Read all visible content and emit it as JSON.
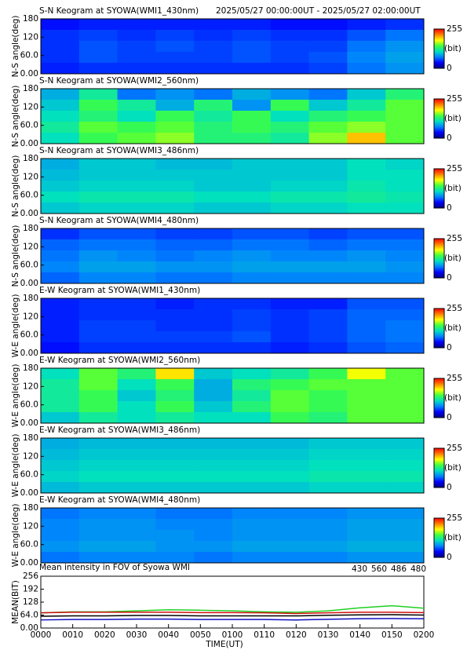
{
  "colorscale": [
    "#00007f",
    "#0000ff",
    "#0080ff",
    "#00e0c0",
    "#40ff40",
    "#ffff00",
    "#ff8000",
    "#ff0000"
  ],
  "chart_data": [
    {
      "type": "heatmap",
      "title": "S-N Keogram at SYOWA(WMI1_430nm)",
      "subtitle": "2025/05/27 00:00:00UT - 2025/05/27 02:00:00UT",
      "ylabel": "N-S angle(deg)",
      "ylim": [
        0,
        180
      ],
      "yticks": [
        {
          "value": 0,
          "label": "0.00"
        },
        {
          "value": 60,
          "label": "60.0"
        },
        120,
        180
      ],
      "clim": [
        0,
        255
      ],
      "cticks": [
        0,
        255
      ],
      "clabel": "(bit)",
      "values": [
        [
          40,
          45,
          45,
          45,
          45,
          45,
          40,
          40,
          45,
          50
        ],
        [
          50,
          55,
          50,
          55,
          50,
          55,
          50,
          50,
          60,
          70
        ],
        [
          50,
          60,
          55,
          60,
          55,
          60,
          55,
          55,
          70,
          80
        ],
        [
          50,
          60,
          55,
          55,
          55,
          60,
          55,
          60,
          75,
          85
        ],
        [
          45,
          50,
          50,
          50,
          50,
          50,
          50,
          55,
          70,
          80
        ]
      ]
    },
    {
      "type": "heatmap",
      "title": "S-N Keogram at SYOWA(WMI2_560nm)",
      "ylabel": "N-S angle(deg)",
      "ylim": [
        0,
        180
      ],
      "yticks": [
        {
          "value": 0,
          "label": "0.00"
        },
        {
          "value": 60,
          "label": "60.0"
        },
        120,
        180
      ],
      "clim": [
        0,
        255
      ],
      "cticks": [
        0,
        255
      ],
      "clabel": "(bit)",
      "values": [
        [
          90,
          120,
          70,
          80,
          70,
          90,
          80,
          70,
          100,
          130
        ],
        [
          100,
          140,
          120,
          90,
          130,
          80,
          140,
          100,
          120,
          150
        ],
        [
          110,
          130,
          110,
          140,
          120,
          140,
          110,
          130,
          140,
          150
        ],
        [
          120,
          150,
          140,
          150,
          130,
          140,
          130,
          150,
          160,
          150
        ],
        [
          110,
          140,
          150,
          160,
          130,
          130,
          120,
          160,
          200,
          150
        ]
      ]
    },
    {
      "type": "heatmap",
      "title": "S-N Keogram at SYOWA(WMI3_486nm)",
      "ylabel": "N-S angle(deg)",
      "ylim": [
        0,
        180
      ],
      "yticks": [
        {
          "value": 0,
          "label": "0.00"
        },
        {
          "value": 60,
          "label": "60.0"
        },
        120,
        180
      ],
      "clim": [
        0,
        255
      ],
      "cticks": [
        0,
        255
      ],
      "clabel": "(bit)",
      "values": [
        [
          90,
          100,
          100,
          95,
          95,
          100,
          100,
          100,
          110,
          105
        ],
        [
          95,
          100,
          100,
          100,
          100,
          100,
          100,
          100,
          110,
          110
        ],
        [
          100,
          105,
          105,
          105,
          100,
          100,
          105,
          105,
          115,
          110
        ],
        [
          110,
          115,
          115,
          115,
          110,
          110,
          115,
          115,
          120,
          115
        ],
        [
          100,
          105,
          105,
          105,
          100,
          100,
          105,
          105,
          110,
          110
        ]
      ]
    },
    {
      "type": "heatmap",
      "title": "S-N Keogram at SYOWA(WMI4_480nm)",
      "ylabel": "N-S angle(deg)",
      "ylim": [
        0,
        180
      ],
      "yticks": [
        {
          "value": 0,
          "label": "0.00"
        },
        {
          "value": 60,
          "label": "60.0"
        },
        120,
        180
      ],
      "clim": [
        0,
        255
      ],
      "cticks": [
        0,
        255
      ],
      "clabel": "(bit)",
      "values": [
        [
          50,
          60,
          60,
          55,
          55,
          60,
          60,
          55,
          60,
          60
        ],
        [
          65,
          70,
          70,
          65,
          65,
          70,
          70,
          65,
          70,
          70
        ],
        [
          70,
          80,
          75,
          70,
          75,
          80,
          75,
          75,
          80,
          75
        ],
        [
          75,
          85,
          85,
          80,
          80,
          85,
          85,
          85,
          85,
          80
        ],
        [
          65,
          75,
          75,
          70,
          70,
          75,
          75,
          75,
          75,
          75
        ]
      ]
    },
    {
      "type": "heatmap",
      "title": "E-W Keogram at SYOWA(WMI1_430nm)",
      "ylabel": "W-E angle(deg)",
      "ylim": [
        0,
        180
      ],
      "yticks": [
        {
          "value": 0,
          "label": "0.00"
        },
        {
          "value": 60,
          "label": "60.0"
        },
        120,
        180
      ],
      "clim": [
        0,
        255
      ],
      "cticks": [
        0,
        255
      ],
      "clabel": "(bit)",
      "values": [
        [
          45,
          50,
          50,
          45,
          50,
          50,
          45,
          45,
          60,
          60
        ],
        [
          45,
          50,
          50,
          50,
          50,
          55,
          50,
          55,
          65,
          65
        ],
        [
          45,
          55,
          55,
          50,
          50,
          55,
          50,
          55,
          65,
          70
        ],
        [
          45,
          55,
          55,
          55,
          55,
          60,
          50,
          55,
          65,
          70
        ],
        [
          40,
          50,
          50,
          50,
          50,
          50,
          45,
          50,
          60,
          65
        ]
      ]
    },
    {
      "type": "heatmap",
      "title": "E-W Keogram at SYOWA(WMI2_560nm)",
      "ylabel": "W-E angle(deg)",
      "ylim": [
        0,
        180
      ],
      "yticks": [
        {
          "value": 0,
          "label": "0.00"
        },
        {
          "value": 60,
          "label": "60.0"
        },
        120,
        180
      ],
      "clim": [
        0,
        255
      ],
      "cticks": [
        0,
        255
      ],
      "clabel": "(bit)",
      "values": [
        [
          110,
          150,
          130,
          190,
          100,
          110,
          120,
          140,
          180,
          150
        ],
        [
          120,
          150,
          110,
          140,
          90,
          130,
          140,
          150,
          150,
          150
        ],
        [
          120,
          140,
          100,
          130,
          90,
          120,
          150,
          140,
          150,
          150
        ],
        [
          120,
          140,
          110,
          140,
          100,
          130,
          150,
          140,
          150,
          150
        ],
        [
          100,
          120,
          110,
          120,
          110,
          110,
          140,
          130,
          150,
          150
        ]
      ]
    },
    {
      "type": "heatmap",
      "title": "E-W Keogram at SYOWA(WMI3_486nm)",
      "ylabel": "W-E angle(deg)",
      "ylim": [
        0,
        180
      ],
      "yticks": [
        {
          "value": 0,
          "label": "0.00"
        },
        {
          "value": 60,
          "label": "60.0"
        },
        120,
        180
      ],
      "clim": [
        0,
        255
      ],
      "cticks": [
        0,
        255
      ],
      "clabel": "(bit)",
      "values": [
        [
          90,
          95,
          95,
          95,
          95,
          95,
          95,
          100,
          100,
          100
        ],
        [
          95,
          100,
          100,
          100,
          100,
          100,
          100,
          105,
          105,
          105
        ],
        [
          100,
          105,
          105,
          105,
          105,
          105,
          105,
          110,
          110,
          110
        ],
        [
          105,
          110,
          110,
          110,
          110,
          110,
          110,
          115,
          115,
          115
        ],
        [
          95,
          100,
          100,
          100,
          100,
          100,
          100,
          105,
          105,
          105
        ]
      ]
    },
    {
      "type": "heatmap",
      "title": "E-W Keogram at SYOWA(WMI4_480nm)",
      "ylabel": "W-E angle(deg)",
      "ylim": [
        0,
        180
      ],
      "yticks": [
        {
          "value": 0,
          "label": "0.00"
        },
        {
          "value": 60,
          "label": "60.0"
        },
        120,
        180
      ],
      "clim": [
        0,
        255
      ],
      "cticks": [
        0,
        255
      ],
      "clabel": "(bit)",
      "values": [
        [
          70,
          75,
          75,
          70,
          70,
          75,
          75,
          75,
          80,
          80
        ],
        [
          75,
          80,
          80,
          75,
          75,
          80,
          80,
          80,
          85,
          85
        ],
        [
          75,
          80,
          80,
          80,
          75,
          80,
          80,
          80,
          85,
          85
        ],
        [
          80,
          85,
          85,
          80,
          80,
          85,
          85,
          85,
          90,
          90
        ],
        [
          70,
          75,
          75,
          75,
          70,
          75,
          75,
          75,
          80,
          80
        ]
      ]
    },
    {
      "type": "line",
      "title": "Mean intensity in FOV of Syowa WMI",
      "ylabel": "MEAN(BIT)",
      "xlabel": "TIME(UT)",
      "xlim": [
        0,
        120
      ],
      "xticks": [
        {
          "value": 0,
          "label": "0000"
        },
        {
          "value": 10,
          "label": "0010"
        },
        {
          "value": 20,
          "label": "0020"
        },
        {
          "value": 30,
          "label": "0030"
        },
        {
          "value": 40,
          "label": "0040"
        },
        {
          "value": 50,
          "label": "0050"
        },
        {
          "value": 60,
          "label": "0100"
        },
        {
          "value": 70,
          "label": "0110"
        },
        {
          "value": 80,
          "label": "0120"
        },
        {
          "value": 90,
          "label": "0130"
        },
        {
          "value": 100,
          "label": "0140"
        },
        {
          "value": 110,
          "label": "0150"
        },
        {
          "value": 120,
          "label": "0200"
        }
      ],
      "ylim": [
        0,
        256
      ],
      "yticks": [
        {
          "value": 0,
          "label": "0.00"
        },
        {
          "value": 64,
          "label": "64.0"
        },
        128,
        192,
        256
      ],
      "x": [
        0,
        10,
        20,
        30,
        40,
        50,
        60,
        70,
        80,
        90,
        100,
        110,
        120
      ],
      "series": [
        {
          "name": "430",
          "color": "#1010c0",
          "values": [
            40,
            42,
            42,
            44,
            44,
            42,
            42,
            42,
            40,
            43,
            46,
            47,
            46
          ]
        },
        {
          "name": "560",
          "color": "#20d020",
          "values": [
            75,
            80,
            80,
            85,
            90,
            88,
            85,
            80,
            78,
            85,
            100,
            110,
            98
          ]
        },
        {
          "name": "486",
          "color": "#d01010",
          "values": [
            75,
            78,
            78,
            78,
            78,
            76,
            76,
            75,
            72,
            75,
            78,
            78,
            76
          ]
        },
        {
          "name": "480",
          "color": "#000000",
          "values": [
            58,
            60,
            60,
            62,
            62,
            60,
            60,
            60,
            60,
            63,
            65,
            66,
            64
          ]
        }
      ]
    }
  ]
}
